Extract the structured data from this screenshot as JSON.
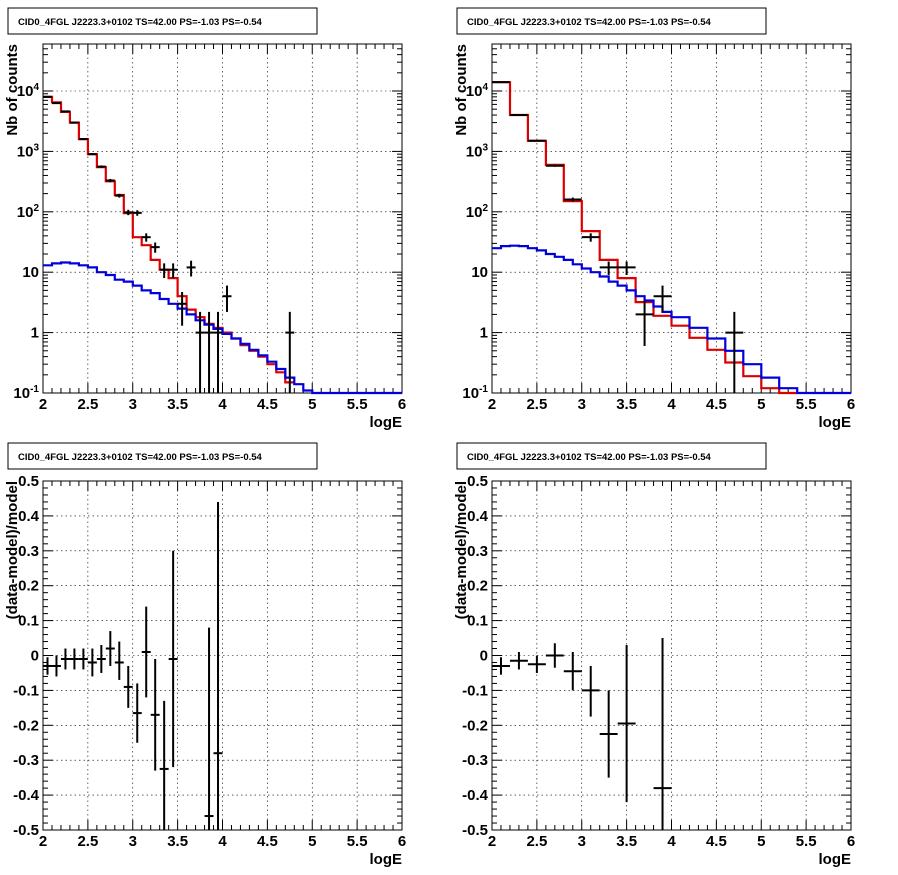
{
  "colors": {
    "data": "#000000",
    "model": "#dd0000",
    "background_model": "#0000dd"
  },
  "chart_data": [
    {
      "type": "line",
      "panel": "top-left",
      "title": "CID0_4FGL J2223.3+0102 TS=42.00 PS=-1.03 PS=-0.54",
      "xlabel": "logE",
      "ylabel": "Nb of counts",
      "xlim": [
        2,
        6
      ],
      "ylim": [
        0.1,
        60000
      ],
      "yscale": "log",
      "grid": true,
      "x_ticks": [
        "2",
        "2.5",
        "3",
        "3.5",
        "4",
        "4.5",
        "5",
        "5.5",
        "6"
      ],
      "y_ticks": [
        "10^-1",
        "1",
        "10",
        "10^2",
        "10^3",
        "10^4"
      ],
      "series": [
        {
          "style": "step",
          "color": "model",
          "edges": [
            2,
            2.1,
            2.2,
            2.3,
            2.4,
            2.5,
            2.6,
            2.7,
            2.8,
            2.9,
            3.0,
            3.1,
            3.2,
            3.3,
            3.4,
            3.5,
            3.6,
            3.7,
            3.8,
            3.9,
            4.0,
            4.1,
            4.2,
            4.3,
            4.4,
            4.5,
            4.6,
            4.7,
            4.8
          ],
          "values": [
            8000,
            6500,
            4500,
            3000,
            1600,
            900,
            550,
            320,
            190,
            95,
            38,
            28,
            16,
            11,
            8,
            4,
            2.4,
            1.8,
            1.4,
            1.2,
            1.0,
            0.8,
            0.62,
            0.5,
            0.4,
            0.3,
            0.22,
            0.15
          ]
        },
        {
          "style": "step",
          "color": "background_model",
          "edges": [
            2,
            2.1,
            2.2,
            2.3,
            2.4,
            2.5,
            2.6,
            2.7,
            2.8,
            2.9,
            3.0,
            3.1,
            3.2,
            3.3,
            3.4,
            3.5,
            3.6,
            3.7,
            3.8,
            3.9,
            4.0,
            4.1,
            4.2,
            4.3,
            4.4,
            4.5,
            4.6,
            4.7,
            4.8,
            4.9,
            5.0,
            5.1,
            6.0
          ],
          "values": [
            13,
            14,
            14.5,
            14,
            13,
            12,
            10,
            9,
            7.5,
            7,
            6,
            5,
            4.5,
            3.6,
            3.0,
            2.5,
            2.0,
            1.6,
            1.35,
            1.15,
            0.95,
            0.8,
            0.65,
            0.52,
            0.42,
            0.33,
            0.25,
            0.18,
            0.14,
            0.11,
            0.1,
            0.1
          ]
        },
        {
          "style": "errorbar",
          "color": "data",
          "points": [
            {
              "x": 2.05,
              "y": 8000,
              "xerr": 0.05,
              "ylo": 7900,
              "yhi": 8100
            },
            {
              "x": 2.15,
              "y": 6300,
              "xerr": 0.05,
              "ylo": 6200,
              "yhi": 6400
            },
            {
              "x": 2.25,
              "y": 4600,
              "xerr": 0.05,
              "ylo": 4500,
              "yhi": 4700
            },
            {
              "x": 2.35,
              "y": 3000,
              "xerr": 0.05,
              "ylo": 2950,
              "yhi": 3050
            },
            {
              "x": 2.45,
              "y": 1600,
              "xerr": 0.05,
              "ylo": 1560,
              "yhi": 1640
            },
            {
              "x": 2.55,
              "y": 900,
              "xerr": 0.05,
              "ylo": 870,
              "yhi": 930
            },
            {
              "x": 2.65,
              "y": 560,
              "xerr": 0.05,
              "ylo": 535,
              "yhi": 585
            },
            {
              "x": 2.75,
              "y": 330,
              "xerr": 0.05,
              "ylo": 310,
              "yhi": 350
            },
            {
              "x": 2.85,
              "y": 185,
              "xerr": 0.05,
              "ylo": 172,
              "yhi": 198
            },
            {
              "x": 2.95,
              "y": 98,
              "xerr": 0.05,
              "ylo": 88,
              "yhi": 108
            },
            {
              "x": 3.05,
              "y": 96,
              "xerr": 0.05,
              "ylo": 86,
              "yhi": 106
            },
            {
              "x": 3.15,
              "y": 38,
              "xerr": 0.05,
              "ylo": 32,
              "yhi": 44
            },
            {
              "x": 3.25,
              "y": 26,
              "xerr": 0.05,
              "ylo": 21,
              "yhi": 31
            },
            {
              "x": 3.35,
              "y": 11,
              "xerr": 0.05,
              "ylo": 8,
              "yhi": 14
            },
            {
              "x": 3.45,
              "y": 11,
              "xerr": 0.05,
              "ylo": 8,
              "yhi": 14
            },
            {
              "x": 3.55,
              "y": 3,
              "xerr": 0.05,
              "ylo": 1.3,
              "yhi": 4.7
            },
            {
              "x": 3.65,
              "y": 12,
              "xerr": 0.05,
              "ylo": 8.5,
              "yhi": 15.5
            },
            {
              "x": 3.75,
              "y": 1,
              "xerr": 0.05,
              "ylo": 0.1,
              "yhi": 2.2
            },
            {
              "x": 3.85,
              "y": 1,
              "xerr": 0.05,
              "ylo": 0.1,
              "yhi": 2.2
            },
            {
              "x": 3.95,
              "y": 1,
              "xerr": 0.05,
              "ylo": 0.1,
              "yhi": 2.2
            },
            {
              "x": 4.05,
              "y": 4,
              "xerr": 0.05,
              "ylo": 2.2,
              "yhi": 6
            },
            {
              "x": 4.75,
              "y": 1,
              "xerr": 0.05,
              "ylo": 0.1,
              "yhi": 2.2
            }
          ]
        }
      ]
    },
    {
      "type": "line",
      "panel": "top-right",
      "title": "CID0_4FGL J2223.3+0102 TS=42.00 PS=-1.03 PS=-0.54",
      "xlabel": "logE",
      "ylabel": "Nb of counts",
      "xlim": [
        2,
        6
      ],
      "ylim": [
        0.1,
        60000
      ],
      "yscale": "log",
      "grid": true,
      "x_ticks": [
        "2",
        "2.5",
        "3",
        "3.5",
        "4",
        "4.5",
        "5",
        "5.5",
        "6"
      ],
      "y_ticks": [
        "10^-1",
        "1",
        "10",
        "10^2",
        "10^3",
        "10^4"
      ],
      "series": [
        {
          "style": "step",
          "color": "model",
          "edges": [
            2,
            2.2,
            2.4,
            2.6,
            2.8,
            3.0,
            3.2,
            3.4,
            3.6,
            3.8,
            4.0,
            4.2,
            4.4,
            4.6,
            4.8,
            5.0,
            5.2,
            5.4
          ],
          "values": [
            14000,
            4000,
            1500,
            600,
            150,
            48,
            16,
            8,
            3.2,
            1.9,
            1.3,
            0.82,
            0.52,
            0.32,
            0.19,
            0.12,
            0.1
          ]
        },
        {
          "style": "step",
          "color": "background_model",
          "edges": [
            2,
            2.1,
            2.2,
            2.3,
            2.4,
            2.5,
            2.6,
            2.7,
            2.8,
            2.9,
            3.0,
            3.1,
            3.2,
            3.3,
            3.4,
            3.5,
            3.6,
            3.7,
            3.8,
            3.9,
            4.0,
            4.2,
            4.4,
            4.6,
            4.8,
            5.0,
            5.2,
            5.4,
            6.0
          ],
          "values": [
            25,
            27,
            27.5,
            27,
            25,
            23,
            20,
            18,
            16,
            13.5,
            11.5,
            10,
            8.5,
            7,
            6.0,
            5.0,
            4.0,
            3.4,
            2.7,
            2.2,
            1.8,
            1.2,
            0.8,
            0.5,
            0.3,
            0.18,
            0.12,
            0.1
          ]
        },
        {
          "style": "errorbar",
          "color": "data",
          "points": [
            {
              "x": 2.1,
              "y": 14000,
              "xerr": 0.1,
              "ylo": 13800,
              "yhi": 14200
            },
            {
              "x": 2.3,
              "y": 4000,
              "xerr": 0.1,
              "ylo": 3900,
              "yhi": 4100
            },
            {
              "x": 2.5,
              "y": 1500,
              "xerr": 0.1,
              "ylo": 1460,
              "yhi": 1540
            },
            {
              "x": 2.7,
              "y": 580,
              "xerr": 0.1,
              "ylo": 555,
              "yhi": 605
            },
            {
              "x": 2.9,
              "y": 160,
              "xerr": 0.1,
              "ylo": 148,
              "yhi": 172
            },
            {
              "x": 3.1,
              "y": 38,
              "xerr": 0.1,
              "ylo": 32,
              "yhi": 44
            },
            {
              "x": 3.3,
              "y": 12,
              "xerr": 0.1,
              "ylo": 9,
              "yhi": 15
            },
            {
              "x": 3.5,
              "y": 12,
              "xerr": 0.1,
              "ylo": 9,
              "yhi": 15
            },
            {
              "x": 3.7,
              "y": 2,
              "xerr": 0.1,
              "ylo": 0.6,
              "yhi": 3.4
            },
            {
              "x": 3.9,
              "y": 4,
              "xerr": 0.1,
              "ylo": 2.2,
              "yhi": 6
            },
            {
              "x": 4.7,
              "y": 1,
              "xerr": 0.1,
              "ylo": 0.1,
              "yhi": 2.2
            }
          ]
        }
      ]
    },
    {
      "type": "scatter",
      "panel": "bottom-left",
      "title": "CID0_4FGL J2223.3+0102 TS=42.00 PS=-1.03 PS=-0.54",
      "xlabel": "logE",
      "ylabel": "(data-model)/model",
      "xlim": [
        2,
        6
      ],
      "ylim": [
        -0.5,
        0.5
      ],
      "yscale": "linear",
      "grid": true,
      "x_ticks": [
        "2",
        "2.5",
        "3",
        "3.5",
        "4",
        "4.5",
        "5",
        "5.5",
        "6"
      ],
      "y_ticks": [
        "-0.5",
        "-0.4",
        "-0.3",
        "-0.2",
        "-0.1",
        "0",
        "0.1",
        "0.2",
        "0.3",
        "0.4",
        "0.5"
      ],
      "series": [
        {
          "style": "errorbar",
          "color": "data",
          "points": [
            {
              "x": 2.05,
              "y": -0.03,
              "xerr": 0.05,
              "ylo": -0.055,
              "yhi": -0.005
            },
            {
              "x": 2.15,
              "y": -0.03,
              "xerr": 0.05,
              "ylo": -0.06,
              "yhi": 0.0
            },
            {
              "x": 2.25,
              "y": -0.01,
              "xerr": 0.05,
              "ylo": -0.04,
              "yhi": 0.02
            },
            {
              "x": 2.35,
              "y": -0.01,
              "xerr": 0.05,
              "ylo": -0.04,
              "yhi": 0.02
            },
            {
              "x": 2.45,
              "y": -0.01,
              "xerr": 0.05,
              "ylo": -0.04,
              "yhi": 0.02
            },
            {
              "x": 2.55,
              "y": -0.02,
              "xerr": 0.05,
              "ylo": -0.06,
              "yhi": 0.02
            },
            {
              "x": 2.65,
              "y": -0.01,
              "xerr": 0.05,
              "ylo": -0.05,
              "yhi": 0.03
            },
            {
              "x": 2.75,
              "y": 0.02,
              "xerr": 0.05,
              "ylo": -0.03,
              "yhi": 0.07
            },
            {
              "x": 2.85,
              "y": -0.02,
              "xerr": 0.05,
              "ylo": -0.07,
              "yhi": 0.04
            },
            {
              "x": 2.95,
              "y": -0.09,
              "xerr": 0.05,
              "ylo": -0.15,
              "yhi": -0.03
            },
            {
              "x": 3.05,
              "y": -0.165,
              "xerr": 0.05,
              "ylo": -0.25,
              "yhi": -0.08
            },
            {
              "x": 3.15,
              "y": 0.01,
              "xerr": 0.05,
              "ylo": -0.12,
              "yhi": 0.14
            },
            {
              "x": 3.25,
              "y": -0.17,
              "xerr": 0.05,
              "ylo": -0.33,
              "yhi": -0.01
            },
            {
              "x": 3.35,
              "y": -0.325,
              "xerr": 0.05,
              "ylo": -0.5,
              "yhi": -0.13
            },
            {
              "x": 3.45,
              "y": -0.01,
              "xerr": 0.05,
              "ylo": -0.32,
              "yhi": 0.3
            },
            {
              "x": 3.85,
              "y": -0.46,
              "xerr": 0.05,
              "ylo": -0.5,
              "yhi": 0.08
            },
            {
              "x": 3.95,
              "y": -0.28,
              "xerr": 0.05,
              "ylo": -0.5,
              "yhi": 0.44
            }
          ]
        }
      ]
    },
    {
      "type": "scatter",
      "panel": "bottom-right",
      "title": "CID0_4FGL J2223.3+0102 TS=42.00 PS=-1.03 PS=-0.54",
      "xlabel": "logE",
      "ylabel": "(data-model)/model",
      "xlim": [
        2,
        6
      ],
      "ylim": [
        -0.5,
        0.5
      ],
      "yscale": "linear",
      "grid": true,
      "x_ticks": [
        "2",
        "2.5",
        "3",
        "3.5",
        "4",
        "4.5",
        "5",
        "5.5",
        "6"
      ],
      "y_ticks": [
        "-0.5",
        "-0.4",
        "-0.3",
        "-0.2",
        "-0.1",
        "0",
        "0.1",
        "0.2",
        "0.3",
        "0.4",
        "0.5"
      ],
      "series": [
        {
          "style": "errorbar",
          "color": "data",
          "points": [
            {
              "x": 2.1,
              "y": -0.03,
              "xerr": 0.1,
              "ylo": -0.055,
              "yhi": -0.005
            },
            {
              "x": 2.3,
              "y": -0.015,
              "xerr": 0.1,
              "ylo": -0.04,
              "yhi": 0.01
            },
            {
              "x": 2.5,
              "y": -0.025,
              "xerr": 0.1,
              "ylo": -0.05,
              "yhi": 0.0
            },
            {
              "x": 2.7,
              "y": 0.0,
              "xerr": 0.1,
              "ylo": -0.035,
              "yhi": 0.035
            },
            {
              "x": 2.9,
              "y": -0.045,
              "xerr": 0.1,
              "ylo": -0.1,
              "yhi": 0.01
            },
            {
              "x": 3.1,
              "y": -0.1,
              "xerr": 0.1,
              "ylo": -0.175,
              "yhi": -0.03
            },
            {
              "x": 3.3,
              "y": -0.225,
              "xerr": 0.1,
              "ylo": -0.35,
              "yhi": -0.1
            },
            {
              "x": 3.5,
              "y": -0.195,
              "xerr": 0.1,
              "ylo": -0.42,
              "yhi": 0.03
            },
            {
              "x": 3.9,
              "y": -0.38,
              "xerr": 0.1,
              "ylo": -0.5,
              "yhi": 0.05
            }
          ]
        }
      ]
    }
  ]
}
